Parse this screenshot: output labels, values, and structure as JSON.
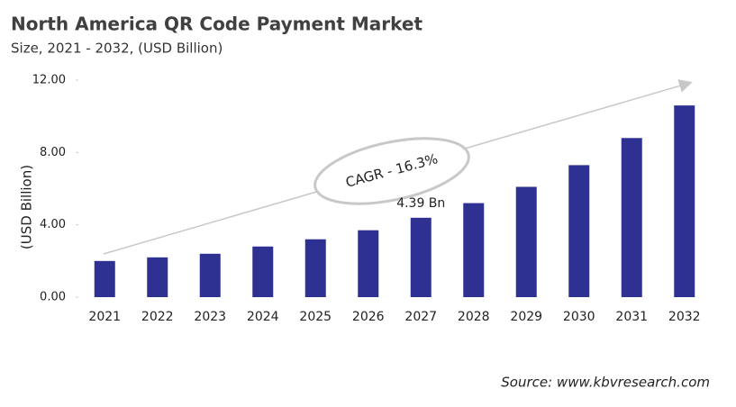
{
  "chart_data": {
    "type": "bar",
    "title": "North America QR Code Payment Market",
    "subtitle": "Size, 2021 - 2032, (USD Billion)",
    "y_label": "(USD Billion)",
    "categories": [
      "2021",
      "2022",
      "2023",
      "2024",
      "2025",
      "2026",
      "2027",
      "2028",
      "2029",
      "2030",
      "2031",
      "2032"
    ],
    "values": [
      2.0,
      2.2,
      2.4,
      2.8,
      3.2,
      3.7,
      4.39,
      5.2,
      6.1,
      7.3,
      8.8,
      10.6
    ],
    "value_labels": [
      null,
      null,
      null,
      null,
      null,
      null,
      "4.39 Bn",
      null,
      null,
      null,
      null,
      null
    ],
    "color": "#2e3192",
    "ylim": [
      0,
      12
    ],
    "yticks": [
      {
        "value": 0,
        "label": "0.00"
      },
      {
        "value": 4,
        "label": "4.00"
      },
      {
        "value": 8,
        "label": "8.00"
      },
      {
        "value": 12,
        "label": "12.00"
      }
    ],
    "grid": false,
    "annotation": "CAGR - 16.3%",
    "source": "Source: www.kbvresearch.com"
  }
}
